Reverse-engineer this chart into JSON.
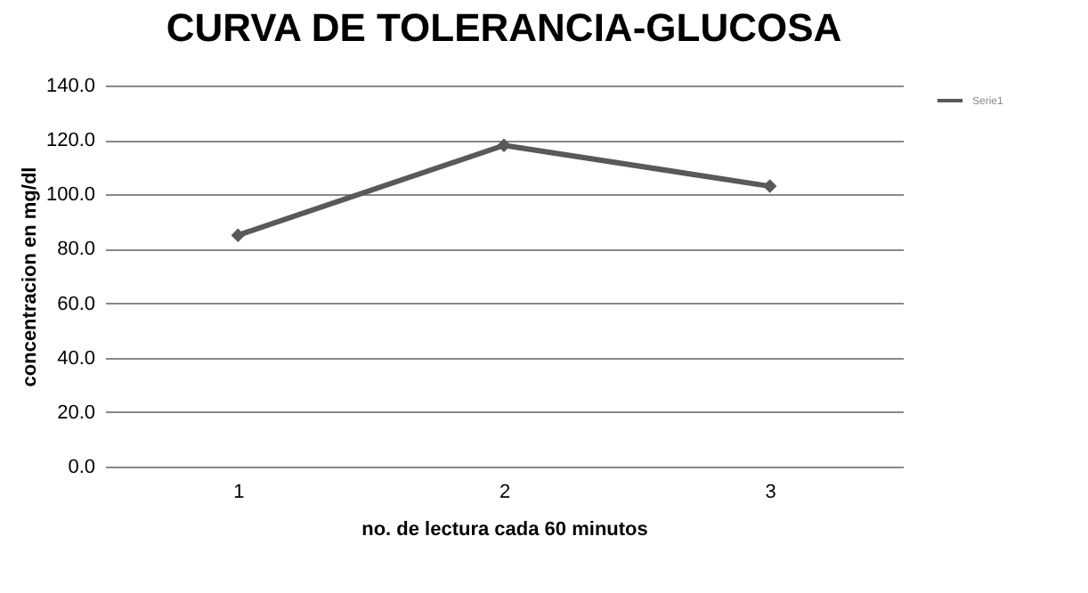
{
  "chart_data": {
    "type": "line",
    "title": "CURVA DE TOLERANCIA-GLUCOSA",
    "xlabel": "no. de lectura cada 60 minutos",
    "ylabel": "concentracion en mg/dl",
    "categories": [
      "1",
      "2",
      "3"
    ],
    "series": [
      {
        "name": "Serie1",
        "color": "#595959",
        "values": [
          85,
          118,
          103
        ]
      }
    ],
    "ylim": [
      0,
      140
    ],
    "yticks": [
      {
        "value": 0,
        "label": "0.0"
      },
      {
        "value": 20,
        "label": "20.0"
      },
      {
        "value": 40,
        "label": "40.0"
      },
      {
        "value": 60,
        "label": "60.0"
      },
      {
        "value": 80,
        "label": "80.0"
      },
      {
        "value": 100,
        "label": "100.0"
      },
      {
        "value": 120,
        "label": "120.0"
      },
      {
        "value": 140,
        "label": "140.0"
      }
    ],
    "grid": "y",
    "legend": "right",
    "marker": "diamond",
    "line_style": "solid"
  }
}
